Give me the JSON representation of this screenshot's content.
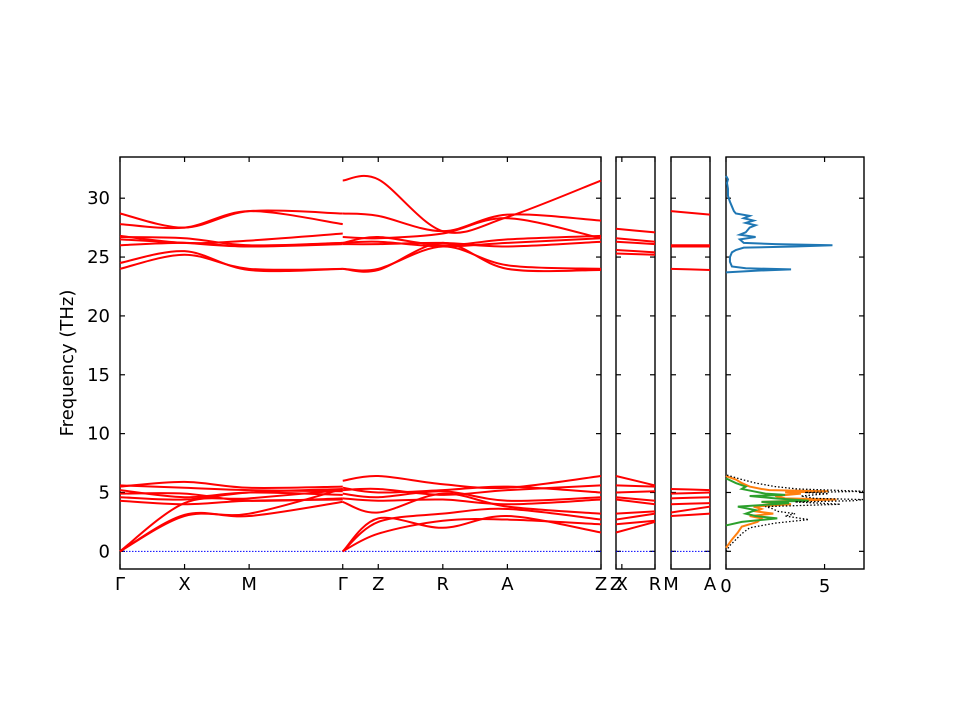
{
  "chart_data": {
    "type": "line",
    "ylabel": "Frequency (THz)",
    "ylim": [
      -1.5,
      33.5
    ],
    "yticks": [
      0,
      5,
      10,
      15,
      20,
      25,
      30
    ],
    "band_color": "#ff0000",
    "zero_line_color": "#0000ff",
    "panels": [
      {
        "id": "main",
        "xticks": [
          {
            "label": "Γ",
            "x": 0
          },
          {
            "label": "X",
            "x": 1
          },
          {
            "label": "M",
            "x": 2
          },
          {
            "label": "Γ",
            "x": 3.45
          },
          {
            "label": "Z",
            "x": 4
          },
          {
            "label": "R",
            "x": 5
          },
          {
            "label": "A",
            "x": 6
          },
          {
            "label": "Z",
            "x": 7.45
          }
        ],
        "segments": [
          {
            "x": [
              0,
              1,
              2,
              3.45
            ],
            "bands": [
              [
                0,
                4.1,
                4.5,
                5.2
              ],
              [
                0,
                3.0,
                3.2,
                5.3
              ],
              [
                0,
                3.1,
                3.0,
                4.2
              ],
              [
                4.9,
                4.9,
                4.3,
                4.5
              ],
              [
                5.2,
                4.6,
                5.0,
                4.8
              ],
              [
                5.6,
                5.4,
                5.2,
                5.1
              ],
              [
                4.6,
                4.4,
                5.0,
                5.3
              ],
              [
                5.5,
                5.9,
                5.4,
                5.5
              ],
              [
                4.3,
                4.0,
                4.3,
                4.4
              ],
              [
                24.0,
                25.2,
                24.0,
                24.0
              ],
              [
                24.5,
                25.5,
                23.9,
                24.0
              ],
              [
                26.0,
                26.2,
                25.9,
                26.1
              ],
              [
                26.5,
                26.2,
                25.9,
                26.2
              ],
              [
                26.7,
                26.6,
                26.0,
                26.2
              ],
              [
                26.8,
                26.2,
                26.4,
                27.0
              ],
              [
                27.8,
                27.5,
                28.9,
                27.8
              ],
              [
                28.7,
                27.5,
                28.9,
                28.7
              ]
            ]
          },
          {
            "x": [
              3.45,
              4,
              5,
              6,
              7.45
            ],
            "bands": [
              [
                0,
                1.5,
                2.6,
                2.7,
                2.3
              ],
              [
                0,
                2.8,
                2.0,
                3.0,
                1.6
              ],
              [
                0,
                2.5,
                3.2,
                3.6,
                2.7
              ],
              [
                4.2,
                3.3,
                4.9,
                3.8,
                3.2
              ],
              [
                4.5,
                4.3,
                4.4,
                4.0,
                4.4
              ],
              [
                4.9,
                4.6,
                5.1,
                4.3,
                4.6
              ],
              [
                5.2,
                5.3,
                4.8,
                5.2,
                5.6
              ],
              [
                5.4,
                5.0,
                5.2,
                5.5,
                5.0
              ],
              [
                6.0,
                6.4,
                5.7,
                5.4,
                6.4
              ],
              [
                24.0,
                23.9,
                26.2,
                24.0,
                23.9
              ],
              [
                24.0,
                24.0,
                25.9,
                24.3,
                24.0
              ],
              [
                26.1,
                26.1,
                26.2,
                25.9,
                26.3
              ],
              [
                26.2,
                26.3,
                25.9,
                26.2,
                26.6
              ],
              [
                26.2,
                26.7,
                26.0,
                26.5,
                26.8
              ],
              [
                26.7,
                26.6,
                27.0,
                28.3,
                26.6
              ],
              [
                28.7,
                28.5,
                27.2,
                28.6,
                28.1
              ],
              [
                31.5,
                31.6,
                27.2,
                28.4,
                31.5
              ]
            ]
          }
        ]
      },
      {
        "id": "zx",
        "xticks": [
          {
            "label": "Z",
            "x": 0
          },
          {
            "label": "X",
            "x": 0.15
          },
          {
            "label": "R",
            "x": 1
          }
        ],
        "segments": [
          {
            "x": [
              0,
              1
            ],
            "bands": [
              [
                2.3,
                2.6
              ],
              [
                1.6,
                2.5
              ],
              [
                2.7,
                3.2
              ],
              [
                3.2,
                3.4
              ],
              [
                4.4,
                4.0
              ],
              [
                4.6,
                4.3
              ],
              [
                5.0,
                5.1
              ],
              [
                5.6,
                5.5
              ],
              [
                6.4,
                5.6
              ],
              [
                25.3,
                25.2
              ],
              [
                25.6,
                25.4
              ],
              [
                26.3,
                26.1
              ],
              [
                26.6,
                26.3
              ],
              [
                27.4,
                27.1
              ]
            ]
          }
        ]
      },
      {
        "id": "ma",
        "xticks": [
          {
            "label": "M",
            "x": 0
          },
          {
            "label": "A",
            "x": 1
          }
        ],
        "segments": [
          {
            "x": [
              0,
              1
            ],
            "bands": [
              [
                3.0,
                3.2
              ],
              [
                3.3,
                3.8
              ],
              [
                4.0,
                4.1
              ],
              [
                4.5,
                4.6
              ],
              [
                4.9,
                5.0
              ],
              [
                5.3,
                5.2
              ],
              [
                24.0,
                23.9
              ],
              [
                25.9,
                25.9
              ],
              [
                26.0,
                26.0
              ],
              [
                28.9,
                28.6
              ]
            ]
          }
        ]
      }
    ],
    "dos": {
      "xlim": [
        0,
        7
      ],
      "xticks": [
        0,
        5
      ],
      "series": [
        {
          "color": "#1f77b4",
          "style": "solid",
          "freq": [
            23.7,
            23.85,
            23.95,
            24.05,
            24.2,
            24.6,
            25.0,
            25.4,
            25.6,
            25.8,
            25.9,
            26.0,
            26.1,
            26.2,
            26.5,
            26.7,
            26.9,
            27.1,
            27.3,
            27.5,
            27.7,
            27.9,
            28.1,
            28.3,
            28.5,
            28.7,
            28.9,
            29.3,
            29.7,
            30.2,
            30.8,
            31.3,
            31.6,
            31.9
          ],
          "dos": [
            0.0,
            1.6,
            3.3,
            1.0,
            0.3,
            0.2,
            0.2,
            0.3,
            0.5,
            0.9,
            3.5,
            5.4,
            2.5,
            0.9,
            0.7,
            1.5,
            0.7,
            1.0,
            1.1,
            1.2,
            1.5,
            1.0,
            1.4,
            0.9,
            1.2,
            0.5,
            0.4,
            0.3,
            0.2,
            0.1,
            0.1,
            0.05,
            0.1,
            0.0
          ]
        },
        {
          "color": "#ff7f0e",
          "style": "solid",
          "freq": [
            0.3,
            1.0,
            1.6,
            2.1,
            2.5,
            2.8,
            3.0,
            3.2,
            3.4,
            3.6,
            3.8,
            4.0,
            4.2,
            4.3,
            4.4,
            4.5,
            4.7,
            4.9,
            5.0,
            5.1,
            5.2,
            5.3,
            5.5,
            5.8,
            6.1,
            6.4
          ],
          "dos": [
            0.0,
            0.3,
            0.6,
            0.8,
            1.6,
            1.8,
            1.2,
            2.4,
            1.5,
            1.8,
            1.4,
            3.3,
            1.8,
            3.5,
            5.6,
            3.0,
            2.5,
            3.8,
            3.0,
            5.2,
            2.2,
            1.8,
            1.2,
            0.8,
            0.5,
            0.0
          ]
        },
        {
          "color": "#2ca02c",
          "style": "solid",
          "freq": [
            2.2,
            2.5,
            2.8,
            3.0,
            3.2,
            3.5,
            3.8,
            4.0,
            4.1,
            4.2,
            4.3,
            4.5,
            4.7,
            4.8,
            4.9,
            5.1,
            5.3,
            5.5,
            5.8,
            6.2
          ],
          "dos": [
            0.0,
            0.8,
            2.6,
            1.5,
            1.0,
            1.5,
            0.6,
            2.4,
            3.2,
            1.8,
            4.2,
            2.5,
            1.2,
            3.0,
            2.0,
            1.4,
            0.8,
            1.0,
            0.5,
            0.0
          ]
        },
        {
          "color": "#000000",
          "style": "dotted",
          "freq": [
            0.0,
            0.5,
            1.0,
            1.5,
            2.0,
            2.4,
            2.7,
            3.0,
            3.2,
            3.4,
            3.6,
            3.8,
            4.0,
            4.2,
            4.3,
            4.4,
            4.5,
            4.7,
            4.9,
            5.0,
            5.1,
            5.3,
            5.5,
            5.8,
            6.1,
            6.5
          ],
          "dos": [
            0.0,
            0.2,
            0.5,
            0.8,
            1.2,
            2.5,
            4.2,
            3.0,
            3.5,
            2.6,
            2.4,
            2.0,
            5.8,
            3.5,
            6.5,
            7.0,
            4.5,
            3.8,
            5.2,
            4.0,
            7.2,
            3.6,
            2.5,
            1.5,
            0.8,
            0.0
          ]
        }
      ]
    }
  }
}
